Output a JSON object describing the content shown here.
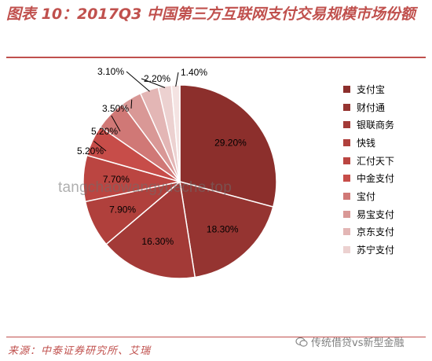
{
  "title": "图表 10：2017Q3 中国第三方互联网支付交易规模市场份额",
  "source": "来源：中泰证券研究所、艾瑞",
  "watermark": "tangchaowangyueche.top",
  "wechat_label": "传统借贷vs新型金融",
  "chart_data": {
    "type": "pie",
    "title": "",
    "start_angle": "12 o'clock",
    "direction": "clockwise",
    "legend_position": "right",
    "slices": [
      {
        "name": "支付宝",
        "value": 29.2,
        "label": "29.20%",
        "color": "#8c2f2c"
      },
      {
        "name": "财付通",
        "value": 18.3,
        "label": "18.30%",
        "color": "#953431"
      },
      {
        "name": "银联商务",
        "value": 16.3,
        "label": "16.30%",
        "color": "#a33a37"
      },
      {
        "name": "快钱",
        "value": 7.9,
        "label": "7.90%",
        "color": "#b0403c"
      },
      {
        "name": "汇付天下",
        "value": 7.7,
        "label": "7.70%",
        "color": "#bb4541"
      },
      {
        "name": "中金支付",
        "value": 5.2,
        "label": "5.20%",
        "color": "#c74d49"
      },
      {
        "name": "宝付",
        "value": 5.2,
        "label": "5.20%",
        "color": "#d07876"
      },
      {
        "name": "易宝支付",
        "value": 3.5,
        "label": "3.50%",
        "color": "#d99896"
      },
      {
        "name": "京东支付",
        "value": 3.1,
        "label": "3.10%",
        "color": "#e3b6b5"
      },
      {
        "name": "苏宁支付",
        "value": 2.2,
        "label": "2.20%",
        "color": "#ecd1d0"
      },
      {
        "name": "",
        "value": 1.4,
        "label": "1.40%",
        "color": "#f4e3e2"
      }
    ]
  }
}
